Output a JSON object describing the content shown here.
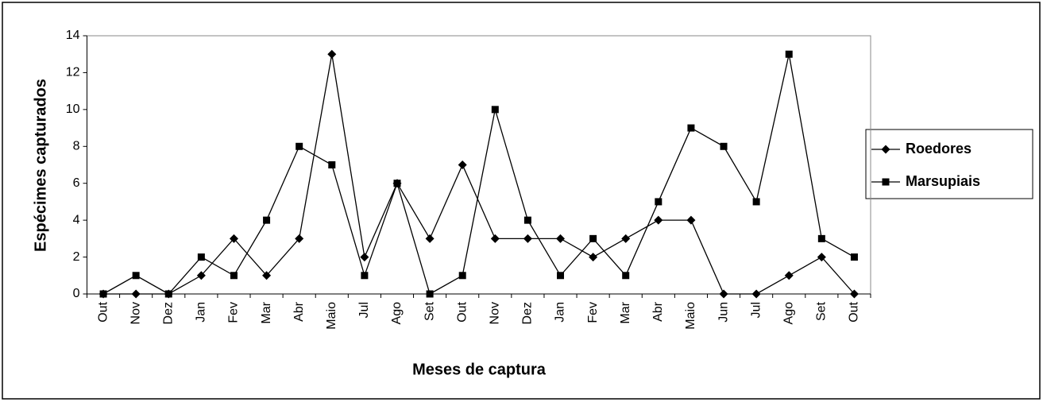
{
  "chart_data": {
    "type": "line",
    "x_label": "Meses de captura",
    "y_label": "Espécimes capturados",
    "categories": [
      "Out",
      "Nov",
      "Dez",
      "Jan",
      "Fev",
      "Mar",
      "Abr",
      "Maio",
      "Jul",
      "Ago",
      "Set",
      "Out",
      "Nov",
      "Dez",
      "Jan",
      "Fev",
      "Mar",
      "Abr",
      "Maio",
      "Jun",
      "Jul",
      "Ago",
      "Set",
      "Out"
    ],
    "series": [
      {
        "name": "Roedores",
        "color": "#000000",
        "marker": "diamond",
        "values": [
          0,
          0,
          0,
          1,
          3,
          1,
          3,
          13,
          2,
          6,
          3,
          7,
          3,
          3,
          3,
          2,
          3,
          4,
          4,
          0,
          0,
          1,
          2,
          0
        ]
      },
      {
        "name": "Marsupiais",
        "color": "#000000",
        "marker": "square",
        "values": [
          0,
          1,
          0,
          2,
          1,
          4,
          8,
          7,
          1,
          6,
          0,
          1,
          10,
          4,
          1,
          3,
          1,
          5,
          9,
          8,
          5,
          13,
          3,
          2
        ]
      }
    ],
    "ylim": [
      0,
      14
    ],
    "yticks": [
      0,
      2,
      4,
      6,
      8,
      10,
      12,
      14
    ],
    "grid": false,
    "legend": "right"
  }
}
